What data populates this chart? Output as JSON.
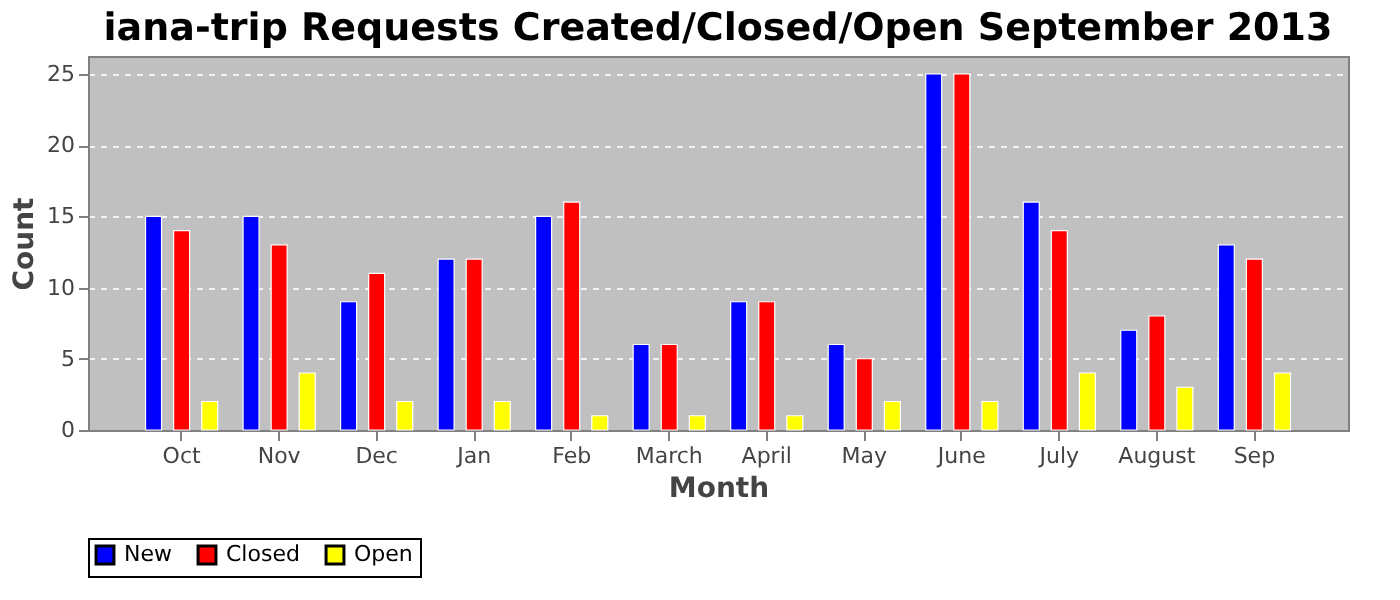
{
  "chart_data": {
    "type": "bar",
    "title": "iana-trip Requests Created/Closed/Open September 2013",
    "xlabel": "Month",
    "ylabel": "Count",
    "categories": [
      "Oct",
      "Nov",
      "Dec",
      "Jan",
      "Feb",
      "March",
      "April",
      "May",
      "June",
      "July",
      "August",
      "Sep"
    ],
    "series": [
      {
        "name": "New",
        "color": "#0000ff",
        "values": [
          15,
          15,
          9,
          12,
          15,
          6,
          9,
          6,
          25,
          16,
          7,
          13
        ]
      },
      {
        "name": "Closed",
        "color": "#ff0000",
        "values": [
          14,
          13,
          11,
          12,
          16,
          6,
          9,
          5,
          25,
          14,
          8,
          12
        ]
      },
      {
        "name": "Open",
        "color": "#ffff00",
        "values": [
          2,
          4,
          2,
          2,
          1,
          1,
          1,
          2,
          2,
          4,
          3,
          4
        ]
      }
    ],
    "ylim": [
      0,
      26.25
    ],
    "yticks": [
      0,
      5,
      10,
      15,
      20,
      25
    ],
    "grid": "y",
    "legend": "bottom"
  }
}
